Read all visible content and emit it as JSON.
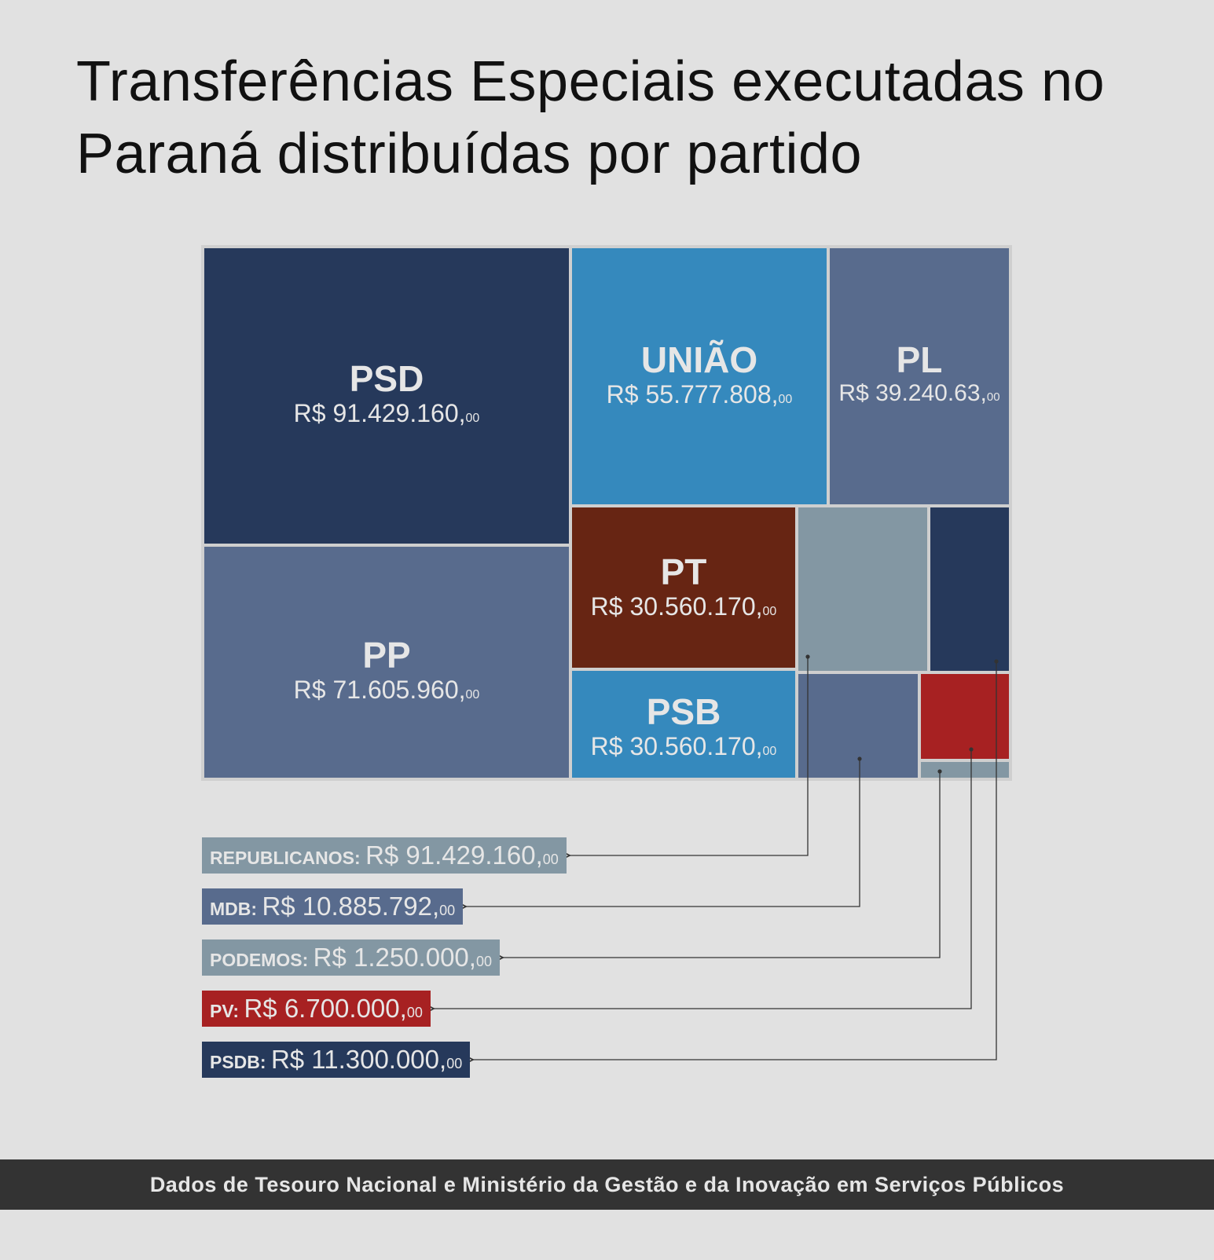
{
  "chart_data": {
    "type": "treemap",
    "title": "Transferências Especiais executadas no Paraná distribuídas por partido",
    "currency_prefix": "R$ ",
    "cells": [
      {
        "name": "PSD",
        "value_text": "91.429.160,",
        "cents": "00",
        "color": "#26395b",
        "label_on_cell": true
      },
      {
        "name": "UNIÃO",
        "value_text": "55.777.808,",
        "cents": "00",
        "color": "#3589bd",
        "label_on_cell": true
      },
      {
        "name": "PL",
        "value_text": "39.240.63,",
        "cents": "00",
        "color": "#586b8d",
        "label_on_cell": true
      },
      {
        "name": "PP",
        "value_text": "71.605.960,",
        "cents": "00",
        "color": "#586b8d",
        "label_on_cell": true
      },
      {
        "name": "PT",
        "value_text": "30.560.170,",
        "cents": "00",
        "color": "#672513",
        "label_on_cell": true
      },
      {
        "name": "PSB",
        "value_text": "30.560.170,",
        "cents": "00",
        "color": "#3589bd",
        "label_on_cell": true
      },
      {
        "name": "REPUBLICANOS",
        "value_text": "91.429.160,",
        "cents": "00",
        "color": "#8397a3",
        "label_on_cell": false
      },
      {
        "name": "PSDB",
        "value_text": "11.300.000,",
        "cents": "00",
        "color": "#26395b",
        "label_on_cell": false
      },
      {
        "name": "MDB",
        "value_text": "10.885.792,",
        "cents": "00",
        "color": "#586b8d",
        "label_on_cell": false
      },
      {
        "name": "PV",
        "value_text": "6.700.000,",
        "cents": "00",
        "color": "#a72122",
        "label_on_cell": false
      },
      {
        "name": "PODEMOS",
        "value_text": "1.250.000,",
        "cents": "00",
        "color": "#8397a3",
        "label_on_cell": false
      }
    ],
    "callouts": [
      "REPUBLICANOS",
      "MDB",
      "PODEMOS",
      "PV",
      "PSDB"
    ]
  },
  "footer": {
    "source": "Dados de Tesouro Nacional e Ministério da Gestão e da Inovação em Serviços Públicos"
  }
}
